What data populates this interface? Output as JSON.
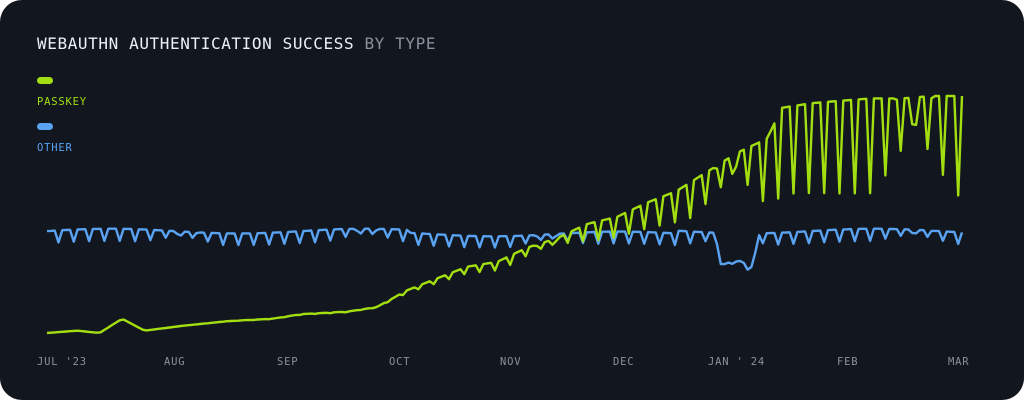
{
  "title": {
    "main": "WEBAUTHN AUTHENTICATION SUCCESS",
    "suffix": "BY TYPE"
  },
  "colors": {
    "background": "#12161e",
    "passkey": "#a3df10",
    "other": "#59a3f2",
    "muted": "#8b919b"
  },
  "chart_data": {
    "type": "line",
    "x_labels": [
      "JUL '23",
      "AUG",
      "SEP",
      "OCT",
      "NOV",
      "DEC",
      "JAN ' 24",
      "FEB",
      "MAR"
    ],
    "ylim": [
      0,
      1
    ],
    "series": [
      {
        "name": "PASSKEY",
        "color": "#a3df10",
        "points": [
          [
            0,
            0.0
          ],
          [
            2,
            0.01
          ],
          [
            3.5,
            0.0
          ],
          [
            5,
            0.06
          ],
          [
            6.5,
            0.01
          ],
          [
            9,
            0.03
          ],
          [
            12,
            0.05
          ],
          [
            15,
            0.06
          ],
          [
            17,
            0.08
          ],
          [
            20,
            0.09
          ],
          [
            22,
            0.11
          ],
          [
            24,
            0.18
          ],
          [
            26,
            0.23
          ],
          [
            28,
            0.28
          ],
          [
            30,
            0.3
          ],
          [
            32,
            0.36
          ],
          [
            34,
            0.4
          ],
          [
            36,
            0.46
          ],
          [
            38,
            0.49
          ],
          [
            40,
            0.55
          ],
          [
            42,
            0.6
          ],
          [
            44,
            0.68
          ],
          [
            46,
            0.76
          ],
          [
            48,
            0.82
          ],
          [
            49,
            0.95
          ],
          [
            51,
            0.97
          ],
          [
            53,
            0.98
          ],
          [
            55,
            0.99
          ],
          [
            57,
            0.99
          ],
          [
            59,
            1.0
          ],
          [
            61,
            1.0
          ]
        ],
        "weekly_dip_depth": [
          [
            0,
            0.0
          ],
          [
            8,
            0.02
          ],
          [
            16,
            0.05
          ],
          [
            22,
            0.12
          ],
          [
            26,
            0.2
          ],
          [
            30,
            0.28
          ],
          [
            34,
            0.35
          ],
          [
            38,
            0.42
          ],
          [
            42,
            0.52
          ],
          [
            44,
            0.62
          ],
          [
            46,
            0.76
          ],
          [
            48,
            0.9
          ],
          [
            53,
            0.95
          ],
          [
            61,
            1.0
          ]
        ]
      },
      {
        "name": "OTHER",
        "color": "#59a3f2",
        "baseline": 0.43,
        "weekly_dip": 0.38,
        "holiday_dips": [
          [
            45,
            0.68
          ],
          [
            46,
            0.74
          ],
          [
            47,
            0.66
          ]
        ]
      }
    ]
  }
}
